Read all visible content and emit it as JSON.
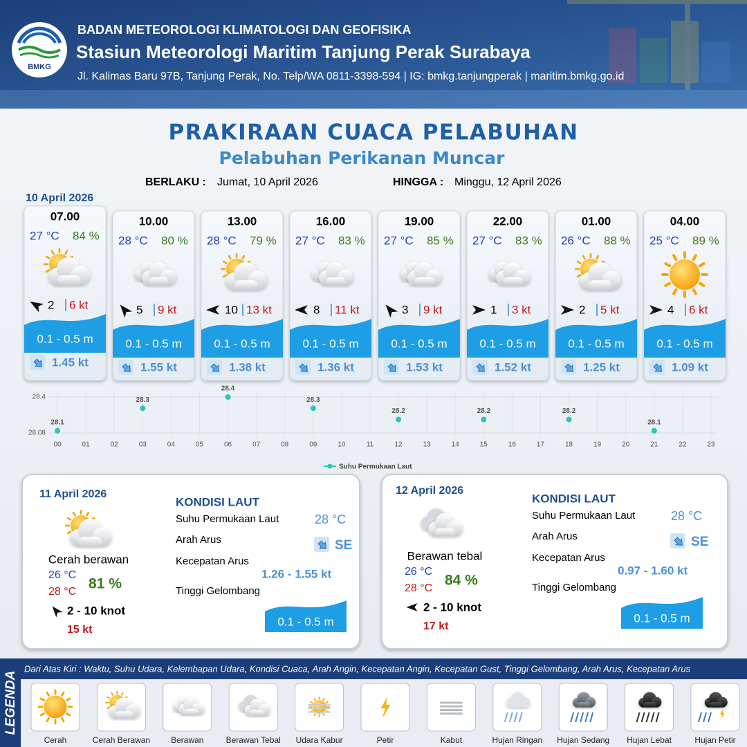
{
  "header": {
    "logo_text": "BMKG",
    "agency": "BADAN METEOROLOGI KLIMATOLOGI DAN GEOFISIKA",
    "station": "Stasiun Meteorologi Maritim Tanjung Perak Surabaya",
    "address": "Jl. Kalimas Baru 97B, Tanjung Perak, No. Telp/WA 0811-3398-594 | IG: bmkg.tanjungperak | maritim.bmkg.go.id"
  },
  "title": "PRAKIRAAN CUACA PELABUHAN",
  "subtitle": "Pelabuhan Perikanan Muncar",
  "validity": {
    "from_label": "BERLAKU :",
    "from": "Jumat, 10 April 2026",
    "to_label": "HINGGA :",
    "to": "Minggu, 12 April 2026"
  },
  "day1_date": "10 April 2026",
  "hourly": [
    {
      "time": "07.00",
      "temperature": "27 °C",
      "humidity": "84 %",
      "wind": "2",
      "gust": "6 kt",
      "wave": "0.1 - 0.5 m",
      "current": "1.45 kt"
    },
    {
      "time": "10.00",
      "temperature": "28 °C",
      "humidity": "80 %",
      "wind": "5",
      "gust": "9 kt",
      "wave": "0.1 - 0.5 m",
      "current": "1.55 kt"
    },
    {
      "time": "13.00",
      "temperature": "28 °C",
      "humidity": "79 %",
      "wind": "10",
      "gust": "13 kt",
      "wave": "0.1 - 0.5 m",
      "current": "1.38 kt"
    },
    {
      "time": "16.00",
      "temperature": "27 °C",
      "humidity": "83 %",
      "wind": "8",
      "gust": "11 kt",
      "wave": "0.1 - 0.5 m",
      "current": "1.36 kt"
    },
    {
      "time": "19.00",
      "temperature": "27 °C",
      "humidity": "85 %",
      "wind": "3",
      "gust": "9 kt",
      "wave": "0.1 - 0.5 m",
      "current": "1.53 kt"
    },
    {
      "time": "22.00",
      "temperature": "27 °C",
      "humidity": "83 %",
      "wind": "1",
      "gust": "3 kt",
      "wave": "0.1 - 0.5 m",
      "current": "1.52 kt"
    },
    {
      "time": "01.00",
      "temperature": "26 °C",
      "humidity": "88 %",
      "wind": "2",
      "gust": "5 kt",
      "wave": "0.1 - 0.5 m",
      "current": "1.25 kt"
    },
    {
      "time": "04.00",
      "temperature": "25 °C",
      "humidity": "89 %",
      "wind": "4",
      "gust": "6 kt",
      "wave": "0.1 - 0.5 m",
      "current": "1.09 kt"
    }
  ],
  "chart_data": {
    "type": "scatter",
    "x": [
      0,
      3,
      6,
      9,
      12,
      15,
      18,
      21
    ],
    "series": [
      {
        "name": "Suhu Permukaan Laut",
        "color": "#2ec4b6",
        "values": [
          28.1,
          28.3,
          28.4,
          28.3,
          28.2,
          28.2,
          28.2,
          28.1
        ]
      }
    ],
    "xlim": [
      0,
      23
    ],
    "xticks": [
      {
        "value": 0,
        "label": "00"
      },
      {
        "value": 1,
        "label": "01"
      },
      {
        "value": 2,
        "label": "02"
      },
      {
        "value": 3,
        "label": "03"
      },
      {
        "value": 4,
        "label": "04"
      },
      {
        "value": 5,
        "label": "05"
      },
      {
        "value": 6,
        "label": "06"
      },
      {
        "value": 7,
        "label": "07"
      },
      {
        "value": 8,
        "label": "08"
      },
      {
        "value": 9,
        "label": "09"
      },
      10,
      11,
      12,
      13,
      14,
      15,
      16,
      17,
      18,
      19,
      20,
      21,
      22,
      23
    ],
    "ylim": [
      28.08,
      28.4
    ],
    "yticks": [
      28.08,
      28.4
    ],
    "grid": true,
    "legend": "bottom"
  },
  "daily": [
    {
      "date": "11 April 2026",
      "condition": "Cerah berawan",
      "temp_min": "26 °C",
      "temp_max": "28 °C",
      "humidity": "81 %",
      "wind": "2 - 10 knot",
      "gust": "15 kt",
      "sea_title": "KONDISI LAUT",
      "sea": [
        {
          "label": "Suhu Permukaan Laut",
          "value": "28 °C"
        },
        {
          "label": "Arah Arus",
          "value": "SE"
        },
        {
          "label": "Kecepatan Arus",
          "value": "1.26 - 1.55 kt"
        },
        {
          "label": "Tinggi Gelombang",
          "value": "0.1 - 0.5 m"
        }
      ]
    },
    {
      "date": "12 April 2026",
      "condition": "Berawan tebal",
      "temp_min": "26 °C",
      "temp_max": "28 °C",
      "humidity": "84 %",
      "wind": "2 - 10 knot",
      "gust": "17 kt",
      "sea_title": "KONDISI LAUT",
      "sea": [
        {
          "label": "Suhu Permukaan Laut",
          "value": "28 °C"
        },
        {
          "label": "Arah Arus",
          "value": "SE"
        },
        {
          "label": "Kecepatan Arus",
          "value": "0.97 - 1.60 kt"
        },
        {
          "label": "Tinggi Gelombang",
          "value": "0.1 - 0.5 m"
        }
      ]
    }
  ],
  "legend": {
    "title": "LEGENDA",
    "description": "Dari Atas Kiri : Waktu, Suhu Udara, Kelembapan Udara, Kondisi Cuaca, Arah Angin, Kecepatan Angin, Kecepatan Gust, Tinggi Gelombang, Arah Arus, Kecepatan Arus",
    "items": [
      "Cerah",
      "Cerah Berawan",
      "Berawan",
      "Berawan Tebal",
      "Udara Kabur",
      "Petir",
      "Kabut",
      "Hujan Ringan",
      "Hujan Sedang",
      "Hujan Lebat",
      "Hujan Petir"
    ]
  }
}
